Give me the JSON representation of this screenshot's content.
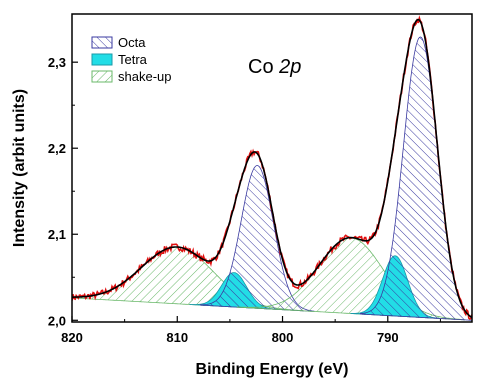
{
  "chart_data": {
    "type": "line",
    "xlabel": "Binding Energy (eV)",
    "ylabel": "Intensity (arbit units)",
    "annotation": {
      "prefix": "Co ",
      "italic": "2p"
    },
    "x_reversed": true,
    "xlim": [
      820,
      782
    ],
    "ylim": [
      1.998,
      2.356
    ],
    "xticks": [
      820,
      810,
      800,
      790
    ],
    "yticks": [
      2.0,
      2.1,
      2.2,
      2.3
    ],
    "ytick_labels": [
      "2,0",
      "2,1",
      "2,2",
      "2,3"
    ],
    "legend": {
      "placement": "top-left",
      "entries": [
        {
          "label": "Octa",
          "pattern": "hatch-diagonal-left",
          "color": "#3a3aa0",
          "fill": "#ffffff"
        },
        {
          "label": "Tetra",
          "pattern": "solid",
          "color": "#1a9aa8",
          "fill": "#22dde6"
        },
        {
          "label": "shake-up",
          "pattern": "hatch-diagonal-right",
          "color": "#6ab86a",
          "fill": "#ffffff"
        }
      ]
    },
    "baseline": {
      "x": [
        820,
        782
      ],
      "y": [
        2.026,
        2.0
      ]
    },
    "components": [
      {
        "kind": "shake-up",
        "center": 810.0,
        "fwhm": 8.0,
        "height": 0.066,
        "color": "#6ab86a"
      },
      {
        "kind": "Tetra",
        "center": 804.6,
        "fwhm": 2.8,
        "height": 0.04,
        "color": "#1a9aa8"
      },
      {
        "kind": "Octa",
        "center": 802.4,
        "fwhm": 3.6,
        "height": 0.166,
        "color": "#3a3aa0"
      },
      {
        "kind": "shake-up",
        "center": 793.5,
        "fwhm": 7.2,
        "height": 0.088,
        "color": "#6ab86a"
      },
      {
        "kind": "Tetra",
        "center": 789.3,
        "fwhm": 2.8,
        "height": 0.07,
        "color": "#1a9aa8"
      },
      {
        "kind": "Octa",
        "center": 786.9,
        "fwhm": 3.8,
        "height": 0.326,
        "color": "#3a3aa0"
      }
    ],
    "series": [
      {
        "kind": "experimental",
        "color": "#e01010",
        "noise": 0.004
      },
      {
        "kind": "fit envelope",
        "color": "#000000"
      }
    ]
  }
}
